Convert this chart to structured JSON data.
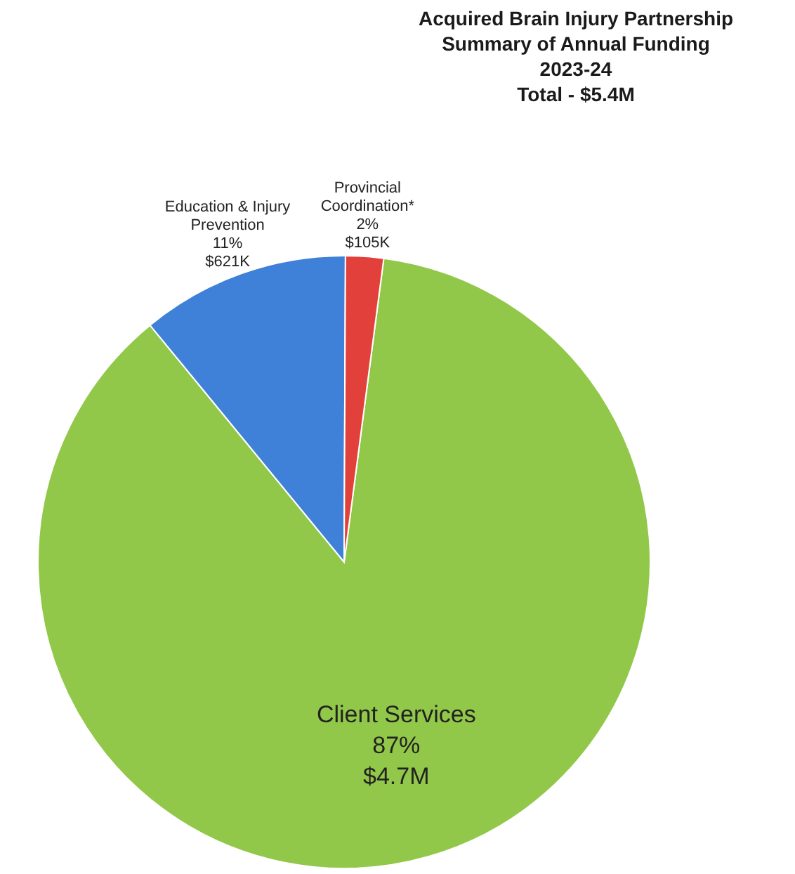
{
  "chart_data": {
    "type": "pie",
    "title": "Acquired Brain Injury Partnership\nSummary of Annual Funding\n2023-24\nTotal - $5.4M",
    "categories": [
      "Client Services",
      "Education & Injury Prevention",
      "Provincial Coordination*"
    ],
    "values": [
      87,
      11,
      2
    ],
    "colors": [
      "#92c849",
      "#3f81d8",
      "#e2413b"
    ],
    "value_labels": [
      "87%\n$4.7M",
      "11%\n$621K",
      "2%\n$105K"
    ],
    "legend": false
  }
}
